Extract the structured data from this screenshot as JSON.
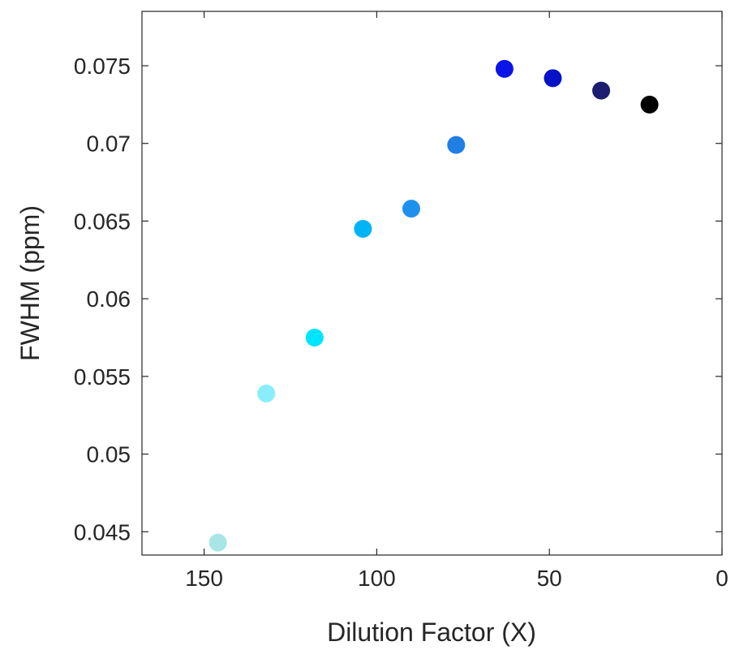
{
  "chart_data": {
    "type": "scatter",
    "title": "",
    "xlabel": "Dilution Factor (X)",
    "ylabel": "FWHM (ppm)",
    "x_reversed": true,
    "xlim": [
      0,
      168
    ],
    "ylim": [
      0.0435,
      0.0785
    ],
    "grid": false,
    "legend": "none",
    "x_ticks": [
      150,
      100,
      50,
      0
    ],
    "x_tick_labels": [
      "150",
      "100",
      "50",
      "0"
    ],
    "y_ticks": [
      0.045,
      0.05,
      0.055,
      0.06,
      0.065,
      0.07,
      0.075
    ],
    "y_tick_labels": [
      "0.045",
      "0.05",
      "0.055",
      "0.06",
      "0.065",
      "0.07",
      "0.075"
    ],
    "points": [
      {
        "x": 146,
        "y": 0.0443,
        "color": "#a8e6e6"
      },
      {
        "x": 132,
        "y": 0.0539,
        "color": "#8aeefa"
      },
      {
        "x": 118,
        "y": 0.0575,
        "color": "#00e5ff"
      },
      {
        "x": 104,
        "y": 0.0645,
        "color": "#00b4f5"
      },
      {
        "x": 90,
        "y": 0.0658,
        "color": "#1e90ee"
      },
      {
        "x": 77,
        "y": 0.0699,
        "color": "#1f7fe3"
      },
      {
        "x": 63,
        "y": 0.0748,
        "color": "#0a14e8"
      },
      {
        "x": 49,
        "y": 0.0742,
        "color": "#0512c8"
      },
      {
        "x": 35,
        "y": 0.0734,
        "color": "#1c1c70"
      },
      {
        "x": 21,
        "y": 0.0725,
        "color": "#000000"
      }
    ]
  }
}
